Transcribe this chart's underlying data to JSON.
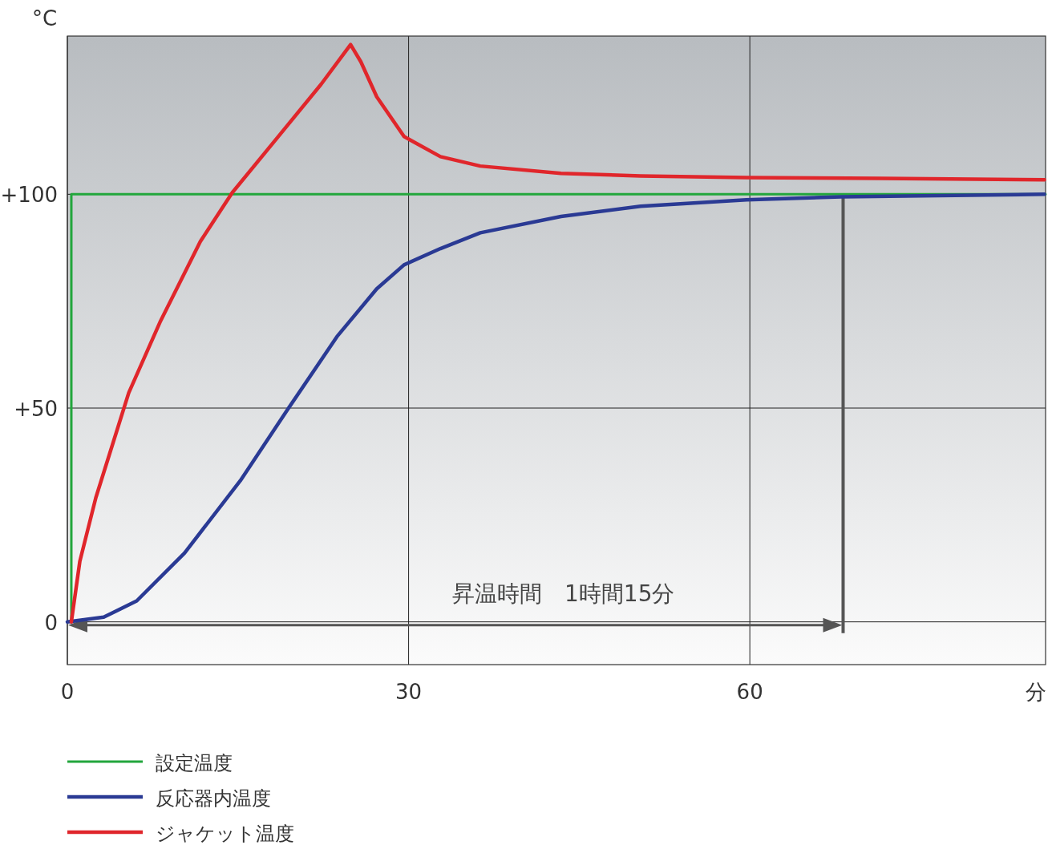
{
  "chart_data": {
    "type": "line",
    "ylabel": "°C",
    "xlabel": "分",
    "xlim": [
      0,
      86
    ],
    "ylim": [
      -10,
      137
    ],
    "xticks": [
      0,
      30,
      60
    ],
    "yticks": [
      {
        "value": 0,
        "label": "0"
      },
      {
        "value": 50,
        "label": "+50"
      },
      {
        "value": 100,
        "label": "+100"
      }
    ],
    "grid": true,
    "legend": "bottom left",
    "marker": "none",
    "line_style": "solid",
    "series": [
      {
        "name": "設定温度",
        "color": "#22a63c",
        "x": [
          0.35,
          0.35,
          86
        ],
        "values": [
          0,
          100,
          100
        ]
      },
      {
        "name": "反応器内温度",
        "color": "#2a3a94",
        "x": [
          0,
          3.2,
          6.1,
          10.3,
          15.2,
          19.4,
          23.7,
          27.2,
          29.6,
          32.8,
          36.3,
          43.4,
          50.4,
          59.7,
          68,
          85.9
        ],
        "values": [
          0,
          1.1,
          4.9,
          16.1,
          33,
          49.8,
          66.7,
          77.9,
          83.5,
          87.3,
          91,
          94.8,
          97.2,
          98.7,
          99.4,
          100
        ]
      },
      {
        "name": "ジャケット温度",
        "color": "#e0262b",
        "x": [
          0.35,
          1.1,
          2.5,
          5.4,
          8.2,
          11.7,
          14.5,
          18.7,
          22.3,
          24.9,
          25.8,
          27.2,
          29.6,
          32.8,
          36.3,
          43.4,
          50.4,
          59.7,
          71.5,
          85.9
        ],
        "values": [
          0,
          14.2,
          29,
          53.6,
          70.4,
          89,
          100.4,
          114,
          125.7,
          135,
          131,
          122.8,
          113.5,
          108.8,
          106.6,
          104.9,
          104.3,
          103.9,
          103.7,
          103.4
        ]
      }
    ],
    "ref_lines": [
      {
        "axis": "x",
        "value": 68.2,
        "color": "#555555"
      }
    ],
    "annotations": [
      "昇温時間　1時間15分"
    ]
  }
}
